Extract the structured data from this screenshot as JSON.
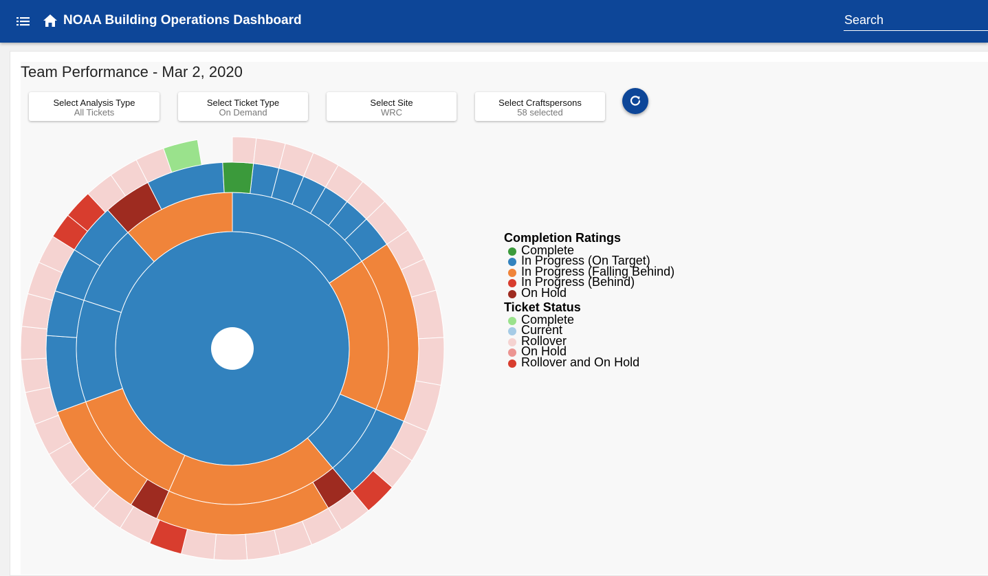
{
  "app": {
    "title": "NOAA Building Operations Dashboard"
  },
  "search": {
    "placeholder": "Search"
  },
  "page": {
    "title": "Team Performance - Mar 2, 2020"
  },
  "filters": [
    {
      "label": "Select Analysis Type",
      "value": "All Tickets"
    },
    {
      "label": "Select Ticket Type",
      "value": "On Demand"
    },
    {
      "label": "Select Site",
      "value": "WRC"
    },
    {
      "label": "Select Craftspersons",
      "value": "58 selected"
    }
  ],
  "icons": {
    "menu": "menu-icon",
    "home": "home-icon",
    "refresh": "refresh-icon"
  },
  "colors": {
    "appbar": "#0d4698",
    "complete_rating": "#3b9a3b",
    "in_progress_on_target": "#3282be",
    "in_progress_falling_behind": "#f0843a",
    "in_progress_behind": "#d83d2e",
    "on_hold_rating": "#9e2b20",
    "status_complete": "#9ae28c",
    "status_current": "#a5cbe6",
    "status_rollover": "#f5d3d1",
    "status_on_hold": "#ec9592",
    "status_rollover_on_hold": "#d83d2e"
  },
  "legend": {
    "completion_title": "Completion Ratings",
    "completion": [
      {
        "label": "Complete",
        "color": "#3b9a3b"
      },
      {
        "label": "In Progress (On Target)",
        "color": "#3282be"
      },
      {
        "label": "In Progress (Falling Behind)",
        "color": "#f0843a"
      },
      {
        "label": "In Progress (Behind)",
        "color": "#d83d2e"
      },
      {
        "label": "On Hold",
        "color": "#9e2b20"
      }
    ],
    "status_title": "Ticket Status",
    "status": [
      {
        "label": "Complete",
        "color": "#9ae28c"
      },
      {
        "label": "Current",
        "color": "#a5cbe6"
      },
      {
        "label": "Rollover",
        "color": "#f5d3d1"
      },
      {
        "label": "On Hold",
        "color": "#ec9592"
      },
      {
        "label": "Rollover and On Hold",
        "color": "#d83d2e"
      }
    ]
  },
  "chart_data": {
    "type": "sunburst",
    "center": {
      "rating": "In Progress (On Target)"
    },
    "ring2": [
      {
        "angle_deg": 56,
        "rating": "In Progress (On Target)"
      },
      {
        "angle_deg": 57,
        "rating": "In Progress (Falling Behind)"
      },
      {
        "angle_deg": 27,
        "rating": "In Progress (On Target)"
      },
      {
        "angle_deg": 64,
        "rating": "In Progress (Falling Behind)"
      },
      {
        "angle_deg": 46,
        "rating": "In Progress (Falling Behind)"
      },
      {
        "angle_deg": 38,
        "rating": "In Progress (On Target)"
      },
      {
        "angle_deg": 30,
        "rating": "In Progress (On Target)"
      },
      {
        "angle_deg": 42,
        "rating": "In Progress (Falling Behind)"
      }
    ],
    "ring3": [
      {
        "angle_deg": 6.5,
        "rating": "In Progress (On Target)"
      },
      {
        "angle_deg": 8,
        "rating": "In Progress (On Target)"
      },
      {
        "angle_deg": 8,
        "rating": "In Progress (On Target)"
      },
      {
        "angle_deg": 7.5,
        "rating": "In Progress (On Target)"
      },
      {
        "angle_deg": 8,
        "rating": "In Progress (On Target)"
      },
      {
        "angle_deg": 8,
        "rating": "In Progress (On Target)"
      },
      {
        "angle_deg": 10,
        "rating": "In Progress (On Target)"
      },
      {
        "angle_deg": 57,
        "rating": "In Progress (Falling Behind)"
      },
      {
        "angle_deg": 27,
        "rating": "In Progress (On Target)"
      },
      {
        "angle_deg": 9,
        "rating": "On Hold"
      },
      {
        "angle_deg": 55,
        "rating": "In Progress (Falling Behind)"
      },
      {
        "angle_deg": 9,
        "rating": "On Hold"
      },
      {
        "angle_deg": 37,
        "rating": "In Progress (Falling Behind)"
      },
      {
        "angle_deg": 24,
        "rating": "In Progress (On Target)"
      },
      {
        "angle_deg": 14,
        "rating": "In Progress (On Target)"
      },
      {
        "angle_deg": 14,
        "rating": "In Progress (On Target)"
      },
      {
        "angle_deg": 16,
        "rating": "In Progress (On Target)"
      },
      {
        "angle_deg": 15,
        "rating": "On Hold"
      },
      {
        "angle_deg": 24,
        "rating": "In Progress (On Target)"
      },
      {
        "angle_deg": 9.5,
        "rating": "Complete"
      }
    ],
    "ring4": [
      {
        "angle_deg": 6.5,
        "status": "Rollover"
      },
      {
        "angle_deg": 8,
        "status": "Rollover"
      },
      {
        "angle_deg": 8,
        "status": "Rollover"
      },
      {
        "angle_deg": 7.5,
        "status": "Rollover"
      },
      {
        "angle_deg": 8,
        "status": "Rollover"
      },
      {
        "angle_deg": 8,
        "status": "Rollover"
      },
      {
        "angle_deg": 10,
        "status": "Rollover"
      },
      {
        "angle_deg": 9,
        "status": "Rollover"
      },
      {
        "angle_deg": 9,
        "status": "Rollover"
      },
      {
        "angle_deg": 13,
        "status": "Rollover"
      },
      {
        "angle_deg": 13,
        "status": "Rollover"
      },
      {
        "angle_deg": 13,
        "status": "Rollover"
      },
      {
        "angle_deg": 9,
        "status": "Rollover"
      },
      {
        "angle_deg": 9,
        "status": "Rollover"
      },
      {
        "angle_deg": 9,
        "status": "Rollover and On Hold"
      },
      {
        "angle_deg": 9,
        "status": "Rollover"
      },
      {
        "angle_deg": 9,
        "status": "Rollover"
      },
      {
        "angle_deg": 9,
        "status": "Rollover"
      },
      {
        "angle_deg": 9,
        "status": "Rollover"
      },
      {
        "angle_deg": 9,
        "status": "Rollover"
      },
      {
        "angle_deg": 9,
        "status": "Rollover"
      },
      {
        "angle_deg": 9,
        "status": "Rollover and On Hold"
      },
      {
        "angle_deg": 9,
        "status": "Rollover"
      },
      {
        "angle_deg": 9,
        "status": "Rollover"
      },
      {
        "angle_deg": 9,
        "status": "Rollover"
      },
      {
        "angle_deg": 10,
        "status": "Rollover"
      },
      {
        "angle_deg": 9,
        "status": "Rollover"
      },
      {
        "angle_deg": 9,
        "status": "Rollover"
      },
      {
        "angle_deg": 9,
        "status": "Rollover"
      },
      {
        "angle_deg": 9,
        "status": "Rollover"
      },
      {
        "angle_deg": 9,
        "status": "Rollover"
      },
      {
        "angle_deg": 9,
        "status": "Rollover"
      },
      {
        "angle_deg": 8,
        "status": "Rollover"
      },
      {
        "angle_deg": 7,
        "status": "Rollover and On Hold"
      },
      {
        "angle_deg": 8,
        "status": "Rollover and On Hold"
      },
      {
        "angle_deg": 8,
        "status": "Rollover"
      },
      {
        "angle_deg": 8,
        "status": "Rollover"
      },
      {
        "angle_deg": 8,
        "status": "Rollover"
      },
      {
        "angle_deg": 9.5,
        "status": "Complete"
      }
    ]
  }
}
